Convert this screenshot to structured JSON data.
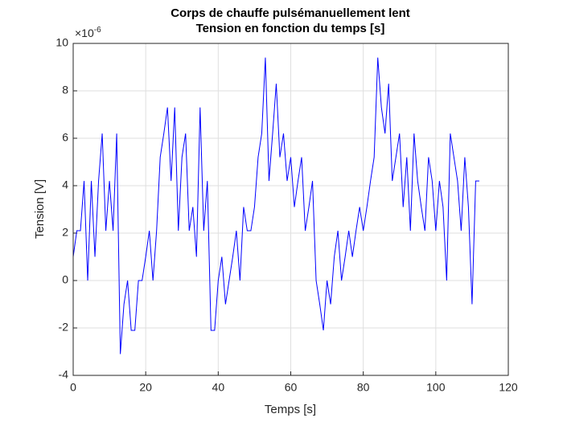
{
  "chart_data": {
    "type": "line",
    "title": [
      "Corps de chauffe pulsémanuellement lent",
      "Tension en fonction du temps [s]"
    ],
    "x_label": "Temps [s]",
    "y_label": "Tension [V]",
    "y_scale_label": {
      "base": "×10",
      "exponent": "-6"
    },
    "xlim": [
      0,
      120
    ],
    "xticks": [
      0,
      20,
      40,
      60,
      80,
      100,
      120
    ],
    "ylim": [
      -4,
      10
    ],
    "yticks": [
      -4,
      -2,
      0,
      2,
      4,
      6,
      8,
      10
    ],
    "grid": true,
    "x": [
      0,
      1,
      2,
      3,
      4,
      5,
      6,
      7,
      8,
      9,
      10,
      11,
      12,
      13,
      14,
      15,
      16,
      17,
      18,
      19,
      20,
      21,
      22,
      23,
      24,
      25,
      26,
      27,
      28,
      29,
      30,
      31,
      32,
      33,
      34,
      35,
      36,
      37,
      38,
      39,
      40,
      41,
      42,
      43,
      44,
      45,
      46,
      47,
      48,
      49,
      50,
      51,
      52,
      53,
      54,
      55,
      56,
      57,
      58,
      59,
      60,
      61,
      62,
      63,
      64,
      65,
      66,
      67,
      68,
      69,
      70,
      71,
      72,
      73,
      74,
      75,
      76,
      77,
      78,
      79,
      80,
      81,
      82,
      83,
      84,
      85,
      86,
      87,
      88,
      89,
      90,
      91,
      92,
      93,
      94,
      95,
      96,
      97,
      98,
      99,
      100,
      101,
      102,
      103,
      104,
      105,
      106,
      107,
      108,
      109,
      110,
      111,
      112
    ],
    "series": [
      {
        "color": "#0000ff",
        "values": [
          1.0,
          2.1,
          2.1,
          4.2,
          0,
          4.2,
          1.0,
          4.2,
          6.2,
          2.1,
          4.2,
          2.1,
          6.2,
          -3.1,
          -1.0,
          0,
          -2.1,
          -2.1,
          0,
          0,
          1.0,
          2.1,
          0,
          2.1,
          5.2,
          6.2,
          7.3,
          4.2,
          7.3,
          2.1,
          5.2,
          6.2,
          2.1,
          3.1,
          1.0,
          7.3,
          2.1,
          4.2,
          -2.1,
          -2.1,
          0,
          1.0,
          -1.0,
          0,
          1.0,
          2.1,
          0,
          3.1,
          2.1,
          2.1,
          3.1,
          5.2,
          6.2,
          9.4,
          4.2,
          6.2,
          8.3,
          5.2,
          6.2,
          4.2,
          5.2,
          3.1,
          4.2,
          5.2,
          2.1,
          3.1,
          4.2,
          0,
          -1.0,
          -2.1,
          0,
          -1.0,
          1.0,
          2.1,
          0,
          1.0,
          2.1,
          1.0,
          2.1,
          3.1,
          2.1,
          3.1,
          4.2,
          5.2,
          9.4,
          7.3,
          6.2,
          8.3,
          4.2,
          5.2,
          6.2,
          3.1,
          5.2,
          2.1,
          6.2,
          4.2,
          3.1,
          2.1,
          5.2,
          4.2,
          2.1,
          4.2,
          3.1,
          0,
          6.2,
          5.2,
          4.2,
          2.1,
          5.2,
          3.1,
          -1.0,
          4.2,
          4.2
        ]
      }
    ]
  }
}
